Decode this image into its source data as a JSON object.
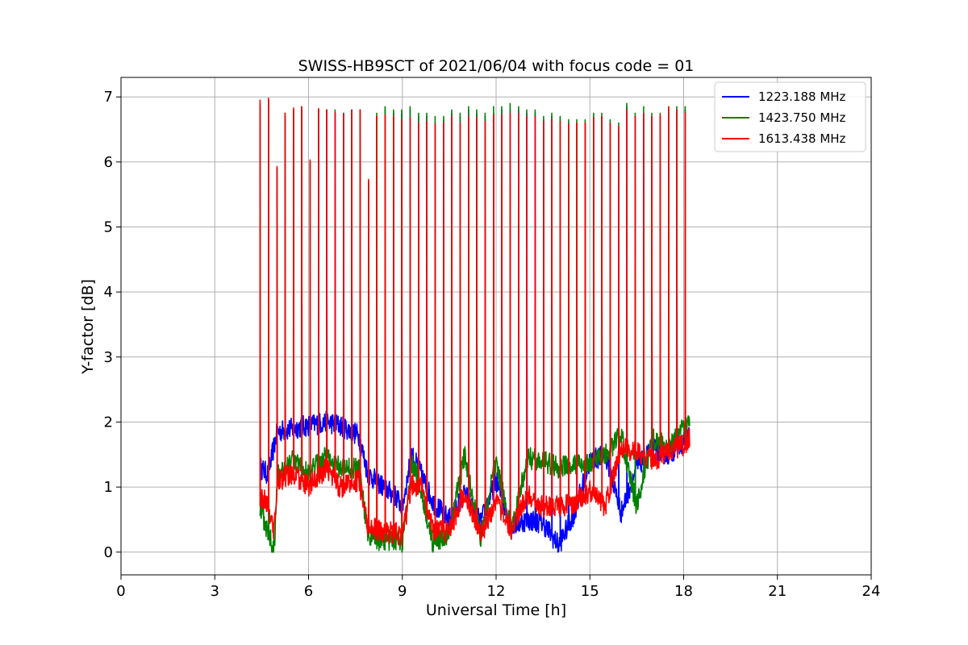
{
  "chart_data": {
    "type": "line",
    "title": "SWISS-HB9SCT of 2021/06/04 with focus code = 01",
    "xlabel": "Universal Time [h]",
    "ylabel": "Y-factor [dB]",
    "xlim": [
      0,
      24
    ],
    "ylim": [
      -0.35,
      7.3
    ],
    "xticks": [
      0,
      3,
      6,
      9,
      12,
      15,
      18,
      21,
      24
    ],
    "yticks": [
      0,
      1,
      2,
      3,
      4,
      5,
      6,
      7
    ],
    "grid": true,
    "legend_position": "top-right",
    "spike_times": [
      4.45,
      4.72,
      4.99,
      5.25,
      5.52,
      5.78,
      6.05,
      6.32,
      6.58,
      6.85,
      7.12,
      7.38,
      7.65,
      7.92,
      8.18,
      8.45,
      8.72,
      8.98,
      9.25,
      9.52,
      9.78,
      10.05,
      10.32,
      10.58,
      10.85,
      11.12,
      11.38,
      11.65,
      11.92,
      12.18,
      12.45,
      12.72,
      12.98,
      13.25,
      13.52,
      13.78,
      14.05,
      14.32,
      14.58,
      14.85,
      15.12,
      15.38,
      15.65,
      15.92,
      16.18,
      16.45,
      16.72,
      16.98,
      17.25,
      17.52,
      17.78,
      18.05
    ],
    "series": [
      {
        "name": "1223.188 MHz",
        "color": "#0000ff",
        "baseline": [
          [
            4.45,
            1.3
          ],
          [
            4.7,
            1.2
          ],
          [
            5.0,
            1.85
          ],
          [
            5.5,
            1.9
          ],
          [
            6.0,
            1.95
          ],
          [
            6.6,
            2.0
          ],
          [
            7.0,
            1.95
          ],
          [
            7.6,
            1.8
          ],
          [
            7.9,
            1.2
          ],
          [
            8.4,
            1.0
          ],
          [
            8.8,
            0.85
          ],
          [
            9.0,
            0.7
          ],
          [
            9.3,
            1.5
          ],
          [
            9.6,
            1.2
          ],
          [
            10.0,
            0.75
          ],
          [
            10.5,
            0.5
          ],
          [
            11.0,
            0.9
          ],
          [
            11.5,
            0.45
          ],
          [
            12.0,
            1.1
          ],
          [
            12.5,
            0.4
          ],
          [
            13.0,
            0.5
          ],
          [
            13.5,
            0.45
          ],
          [
            14.0,
            0.1
          ],
          [
            14.5,
            0.6
          ],
          [
            15.0,
            1.4
          ],
          [
            15.5,
            1.5
          ],
          [
            16.0,
            0.6
          ],
          [
            16.5,
            1.3
          ],
          [
            17.0,
            1.6
          ],
          [
            17.5,
            1.5
          ],
          [
            18.0,
            1.7
          ],
          [
            18.2,
            1.8
          ]
        ],
        "peaks": [
          6.85,
          6.95,
          5.9,
          6.7,
          6.8,
          6.8,
          6.0,
          6.8,
          6.8,
          6.75,
          6.75,
          6.8,
          6.8,
          5.7,
          6.7,
          6.8,
          6.75,
          6.75,
          6.8,
          6.7,
          6.7,
          6.6,
          6.65,
          6.75,
          6.7,
          6.8,
          6.75,
          6.7,
          6.75,
          6.8,
          6.8,
          6.8,
          6.75,
          6.75,
          6.65,
          6.7,
          6.65,
          6.6,
          6.6,
          6.6,
          6.7,
          6.7,
          6.6,
          6.5,
          6.85,
          6.7,
          6.75,
          6.7,
          6.7,
          6.8,
          6.8,
          6.8
        ]
      },
      {
        "name": "1423.750 MHz",
        "color": "#008000",
        "baseline": [
          [
            4.45,
            0.7
          ],
          [
            4.7,
            0.3
          ],
          [
            4.9,
            0.05
          ],
          [
            5.0,
            1.2
          ],
          [
            5.5,
            1.4
          ],
          [
            6.0,
            1.2
          ],
          [
            6.6,
            1.5
          ],
          [
            7.0,
            1.3
          ],
          [
            7.6,
            1.3
          ],
          [
            7.9,
            0.3
          ],
          [
            8.4,
            0.15
          ],
          [
            8.8,
            0.2
          ],
          [
            9.0,
            0.1
          ],
          [
            9.3,
            1.4
          ],
          [
            9.6,
            0.95
          ],
          [
            10.0,
            0.1
          ],
          [
            10.5,
            0.3
          ],
          [
            11.0,
            1.5
          ],
          [
            11.5,
            0.2
          ],
          [
            12.0,
            1.4
          ],
          [
            12.5,
            0.3
          ],
          [
            13.0,
            1.45
          ],
          [
            13.5,
            1.4
          ],
          [
            14.0,
            1.3
          ],
          [
            14.5,
            1.35
          ],
          [
            15.0,
            1.35
          ],
          [
            15.5,
            1.5
          ],
          [
            16.0,
            1.8
          ],
          [
            16.5,
            0.7
          ],
          [
            17.0,
            1.75
          ],
          [
            17.5,
            1.6
          ],
          [
            18.0,
            1.9
          ],
          [
            18.2,
            1.95
          ]
        ],
        "peaks": [
          6.9,
          6.95,
          5.9,
          6.75,
          6.8,
          6.85,
          6.0,
          6.8,
          6.8,
          6.8,
          6.75,
          6.8,
          6.8,
          5.7,
          6.75,
          6.85,
          6.8,
          6.8,
          6.85,
          6.75,
          6.75,
          6.7,
          6.7,
          6.8,
          6.75,
          6.85,
          6.8,
          6.75,
          6.85,
          6.85,
          6.9,
          6.85,
          6.8,
          6.8,
          6.7,
          6.75,
          6.7,
          6.65,
          6.65,
          6.65,
          6.75,
          6.75,
          6.65,
          6.6,
          6.9,
          6.75,
          6.85,
          6.75,
          6.75,
          6.85,
          6.85,
          6.85
        ]
      },
      {
        "name": "1613.438 MHz",
        "color": "#ff0000",
        "baseline": [
          [
            4.45,
            0.85
          ],
          [
            4.7,
            0.75
          ],
          [
            4.9,
            0.3
          ],
          [
            5.0,
            1.1
          ],
          [
            5.5,
            1.2
          ],
          [
            6.0,
            1.0
          ],
          [
            6.6,
            1.3
          ],
          [
            7.0,
            1.0
          ],
          [
            7.6,
            1.1
          ],
          [
            7.9,
            0.4
          ],
          [
            8.4,
            0.3
          ],
          [
            8.8,
            0.3
          ],
          [
            9.0,
            0.25
          ],
          [
            9.3,
            1.05
          ],
          [
            9.6,
            1.0
          ],
          [
            10.0,
            0.35
          ],
          [
            10.5,
            0.3
          ],
          [
            11.0,
            0.95
          ],
          [
            11.5,
            0.25
          ],
          [
            12.0,
            0.8
          ],
          [
            12.5,
            0.35
          ],
          [
            13.0,
            0.9
          ],
          [
            13.5,
            0.7
          ],
          [
            14.0,
            0.7
          ],
          [
            14.5,
            0.75
          ],
          [
            15.0,
            0.95
          ],
          [
            15.5,
            0.7
          ],
          [
            16.0,
            1.6
          ],
          [
            16.5,
            1.55
          ],
          [
            17.0,
            1.4
          ],
          [
            17.5,
            1.55
          ],
          [
            18.0,
            1.65
          ],
          [
            18.2,
            1.75
          ]
        ],
        "peaks": [
          6.95,
          6.98,
          5.93,
          6.75,
          6.83,
          6.85,
          6.03,
          6.82,
          6.8,
          6.76,
          6.74,
          6.79,
          6.8,
          5.73,
          6.7,
          6.72,
          6.7,
          6.65,
          6.68,
          6.6,
          6.62,
          6.58,
          6.6,
          6.7,
          6.6,
          6.7,
          6.68,
          6.62,
          6.72,
          6.73,
          6.75,
          6.75,
          6.7,
          6.7,
          6.62,
          6.65,
          6.62,
          6.58,
          6.6,
          6.6,
          6.68,
          6.7,
          6.6,
          6.55,
          6.8,
          6.7,
          6.75,
          6.7,
          6.72,
          6.85,
          6.8,
          6.75
        ]
      }
    ]
  }
}
